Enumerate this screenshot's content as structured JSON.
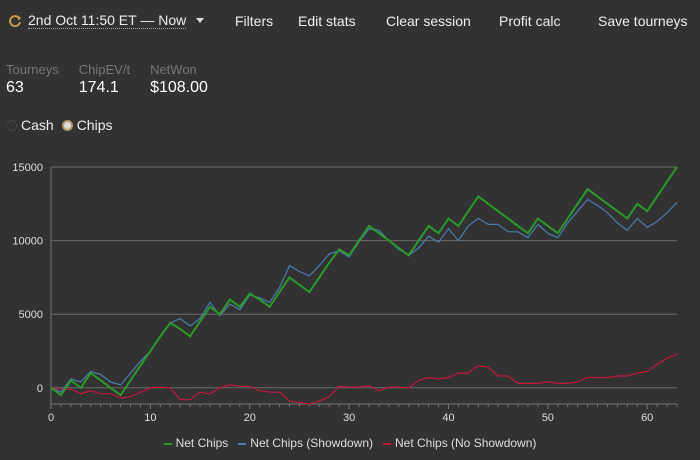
{
  "header": {
    "range_label": "2nd Oct 11:50 ET — Now",
    "buttons": [
      "Filters",
      "Edit stats",
      "Clear session",
      "Profit calc",
      "Save tourneys"
    ],
    "accent": "#c89a4a"
  },
  "stats": [
    {
      "label": "Tourneys",
      "value": "63"
    },
    {
      "label": "ChipEV/t",
      "value": "174.1"
    },
    {
      "label": "NetWon",
      "value": "$108.00"
    }
  ],
  "mode": {
    "options": [
      "Cash",
      "Chips"
    ],
    "selected": "Chips"
  },
  "chart_data": {
    "type": "line",
    "xlim": [
      0,
      63
    ],
    "ylim": [
      -1100,
      15000
    ],
    "xticks": [
      0,
      10,
      20,
      30,
      40,
      50,
      60
    ],
    "yticks": [
      0,
      5000,
      10000,
      15000
    ],
    "grid": "horizontal",
    "legend": "bottom",
    "x_start": 0,
    "series": [
      {
        "name": "Net Chips",
        "color": "#2a9a2a",
        "values": [
          0,
          -500,
          500,
          0,
          1000,
          500,
          0,
          -500,
          500,
          1500,
          2500,
          3500,
          4400,
          4000,
          3500,
          4500,
          5500,
          5000,
          6000,
          5500,
          6400,
          6000,
          5500,
          6500,
          7500,
          7000,
          6500,
          7500,
          8500,
          9400,
          9000,
          10000,
          11000,
          10500,
          10000,
          9500,
          9000,
          10000,
          11000,
          10500,
          11500,
          11000,
          12000,
          13000,
          12500,
          12000,
          11500,
          11000,
          10500,
          11500,
          11000,
          10500,
          11500,
          12500,
          13500,
          13000,
          12500,
          12000,
          11500,
          12500,
          12000,
          13000,
          14000,
          15000
        ]
      },
      {
        "name": "Net Chips (Showdown)",
        "color": "#4a7db0",
        "values": [
          0,
          -300,
          600,
          400,
          1100,
          900,
          400,
          200,
          1000,
          1800,
          2500,
          3500,
          4400,
          4700,
          4200,
          4700,
          5800,
          4900,
          5700,
          5300,
          6300,
          6100,
          5800,
          6800,
          8300,
          7900,
          7600,
          8300,
          9100,
          9300,
          8900,
          9900,
          10800,
          10700,
          10000,
          9400,
          9000,
          9500,
          10300,
          9900,
          10800,
          10000,
          11000,
          11500,
          11100,
          11100,
          10600,
          10600,
          10200,
          11100,
          10500,
          10200,
          11200,
          12000,
          12800,
          12400,
          11900,
          11200,
          10700,
          11500,
          10900,
          11300,
          11900,
          12600
        ]
      },
      {
        "name": "Net Chips (No Showdown)",
        "color": "#c0183f",
        "values": [
          0,
          -100,
          -100,
          -400,
          -200,
          -400,
          -400,
          -700,
          -600,
          -300,
          0,
          50,
          0,
          -800,
          -800,
          -300,
          -400,
          0,
          200,
          100,
          100,
          -200,
          -300,
          -300,
          -900,
          -1000,
          -1100,
          -900,
          -600,
          100,
          50,
          50,
          150,
          -200,
          50,
          50,
          0,
          500,
          700,
          600,
          700,
          1000,
          1000,
          1500,
          1400,
          800,
          800,
          300,
          300,
          300,
          400,
          300,
          300,
          400,
          700,
          700,
          700,
          800,
          800,
          1000,
          1100,
          1600,
          2000,
          2300
        ]
      }
    ]
  }
}
